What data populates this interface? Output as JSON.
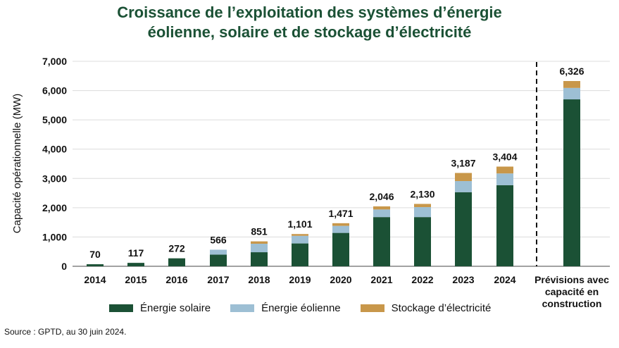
{
  "title": {
    "line1": "Croissance de l’exploitation des systèmes d’énergie",
    "line2": "éolienne, solaire et de stockage d’électricité"
  },
  "source": "Source : GPTD, au 30 juin 2024.",
  "colors": {
    "solar": "#1b5135",
    "wind": "#9dbfd4",
    "storage": "#c8974a"
  },
  "chart_data": {
    "type": "bar",
    "stacked": true,
    "title": "Croissance de l’exploitation des systèmes d’énergie éolienne, solaire et de stockage d’électricité",
    "ylabel": "Capacité opérationnelle (MW)",
    "xlabel": "",
    "ylim": [
      0,
      7000
    ],
    "yticks": [
      "0",
      "1,000",
      "2,000",
      "3,000",
      "4,000",
      "5,000",
      "6,000",
      "7,000"
    ],
    "grid": true,
    "legend_position": "bottom",
    "categories": [
      "2014",
      "2015",
      "2016",
      "2017",
      "2018",
      "2019",
      "2020",
      "2021",
      "2022",
      "2023",
      "2024",
      "Prévisions avec capacité en construction"
    ],
    "series": [
      {
        "name": "Énergie solaire",
        "values": [
          70,
          117,
          272,
          400,
          480,
          780,
          1140,
          1680,
          1680,
          2530,
          2770,
          5700
        ]
      },
      {
        "name": "Énergie éolienne",
        "values": [
          0,
          0,
          0,
          166,
          290,
          260,
          240,
          260,
          340,
          380,
          400,
          390
        ]
      },
      {
        "name": "Stockage d’électricité",
        "values": [
          0,
          0,
          0,
          0,
          81,
          61,
          91,
          106,
          110,
          277,
          234,
          236
        ]
      }
    ],
    "totals": [
      "70",
      "117",
      "272",
      "566",
      "851",
      "1,101",
      "1,471",
      "2,046",
      "2,130",
      "3,187",
      "3,404",
      "6,326"
    ],
    "forecast_label_lines": [
      "Prévisions avec",
      "capacité en",
      "construction"
    ]
  }
}
